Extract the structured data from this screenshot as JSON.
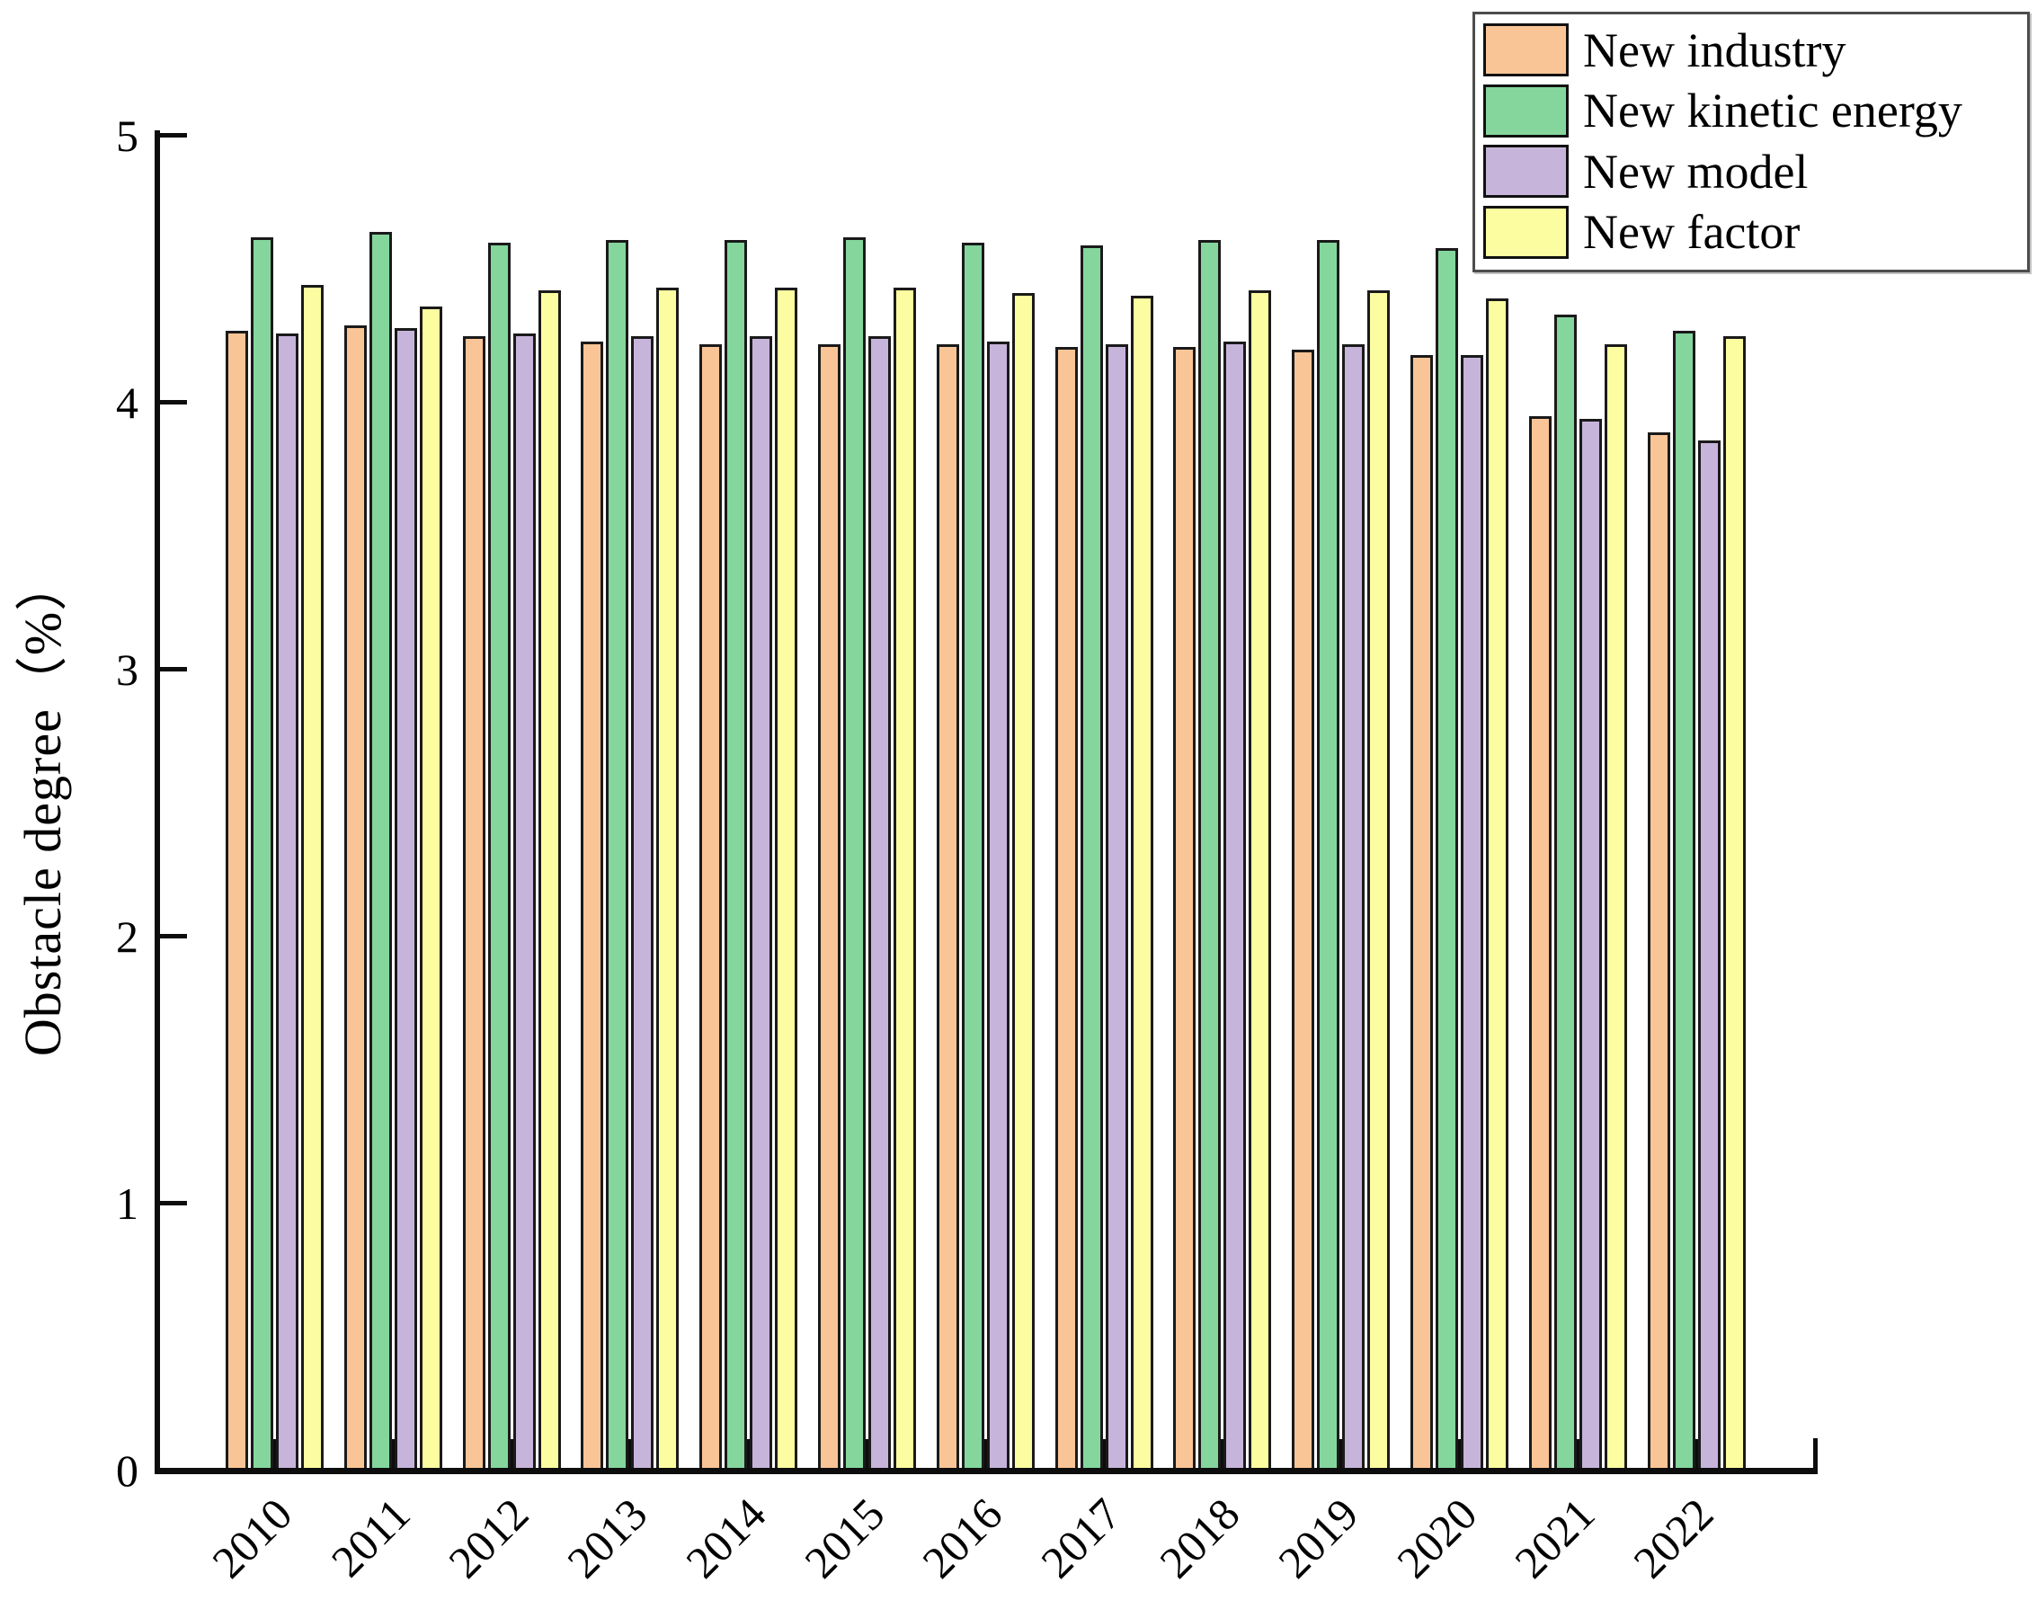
{
  "figure": {
    "ylabel": "Obstacle degree（%）"
  },
  "chart_data": {
    "type": "bar",
    "title": "",
    "xlabel": "",
    "ylabel": "Obstacle degree（%）",
    "ylim": [
      0,
      5
    ],
    "yticks": [
      "0",
      "1",
      "2",
      "3",
      "4",
      "5"
    ],
    "grid": false,
    "legend_position": "top-right",
    "background_color": "#ffffff",
    "axis_color": "#0d0d0d",
    "bar_outline_color": "#1a1a1a",
    "legend_border_color": "#4d4d4d",
    "categories": [
      "2010",
      "2011",
      "2012",
      "2013",
      "2014",
      "2015",
      "2016",
      "2017",
      "2018",
      "2019",
      "2020",
      "2021",
      "2022"
    ],
    "series": [
      {
        "name": "New industry",
        "color": "#FAC596",
        "values": [
          4.26,
          4.28,
          4.24,
          4.22,
          4.21,
          4.21,
          4.21,
          4.2,
          4.2,
          4.19,
          4.17,
          3.94,
          3.88
        ]
      },
      {
        "name": "New kinetic energy",
        "color": "#84D69D",
        "values": [
          4.61,
          4.63,
          4.59,
          4.6,
          4.6,
          4.61,
          4.59,
          4.58,
          4.6,
          4.6,
          4.57,
          4.32,
          4.26
        ]
      },
      {
        "name": "New model",
        "color": "#C7B4DA",
        "values": [
          4.25,
          4.27,
          4.25,
          4.24,
          4.24,
          4.24,
          4.22,
          4.21,
          4.22,
          4.21,
          4.17,
          3.93,
          3.85
        ]
      },
      {
        "name": "New factor",
        "color": "#FCFCA0",
        "values": [
          4.43,
          4.35,
          4.41,
          4.42,
          4.42,
          4.42,
          4.4,
          4.39,
          4.41,
          4.41,
          4.38,
          4.21,
          4.24
        ]
      }
    ]
  }
}
